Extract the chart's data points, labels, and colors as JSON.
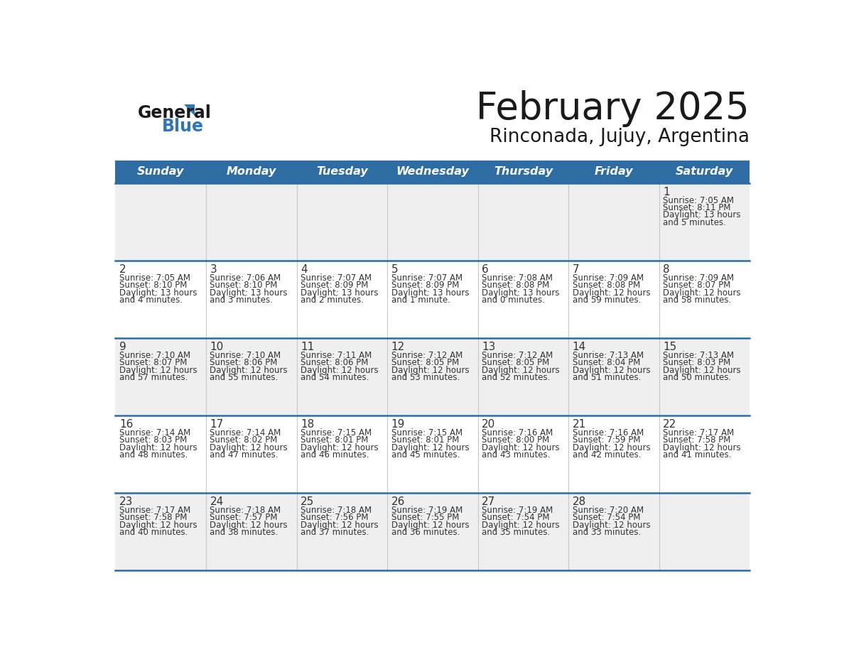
{
  "title": "February 2025",
  "subtitle": "Rinconada, Jujuy, Argentina",
  "header_bg": "#2E6DA4",
  "header_text_color": "#FFFFFF",
  "cell_bg_even": "#EFEFEF",
  "cell_bg_odd": "#FFFFFF",
  "border_color": "#2E6DA4",
  "day_headers": [
    "Sunday",
    "Monday",
    "Tuesday",
    "Wednesday",
    "Thursday",
    "Friday",
    "Saturday"
  ],
  "days": [
    {
      "day": 1,
      "col": 6,
      "row": 0,
      "sunrise": "7:05 AM",
      "sunset": "8:11 PM",
      "daylight_h": "13 hours",
      "daylight_m": "and 5 minutes."
    },
    {
      "day": 2,
      "col": 0,
      "row": 1,
      "sunrise": "7:05 AM",
      "sunset": "8:10 PM",
      "daylight_h": "13 hours",
      "daylight_m": "and 4 minutes."
    },
    {
      "day": 3,
      "col": 1,
      "row": 1,
      "sunrise": "7:06 AM",
      "sunset": "8:10 PM",
      "daylight_h": "13 hours",
      "daylight_m": "and 3 minutes."
    },
    {
      "day": 4,
      "col": 2,
      "row": 1,
      "sunrise": "7:07 AM",
      "sunset": "8:09 PM",
      "daylight_h": "13 hours",
      "daylight_m": "and 2 minutes."
    },
    {
      "day": 5,
      "col": 3,
      "row": 1,
      "sunrise": "7:07 AM",
      "sunset": "8:09 PM",
      "daylight_h": "13 hours",
      "daylight_m": "and 1 minute."
    },
    {
      "day": 6,
      "col": 4,
      "row": 1,
      "sunrise": "7:08 AM",
      "sunset": "8:08 PM",
      "daylight_h": "13 hours",
      "daylight_m": "and 0 minutes."
    },
    {
      "day": 7,
      "col": 5,
      "row": 1,
      "sunrise": "7:09 AM",
      "sunset": "8:08 PM",
      "daylight_h": "12 hours",
      "daylight_m": "and 59 minutes."
    },
    {
      "day": 8,
      "col": 6,
      "row": 1,
      "sunrise": "7:09 AM",
      "sunset": "8:07 PM",
      "daylight_h": "12 hours",
      "daylight_m": "and 58 minutes."
    },
    {
      "day": 9,
      "col": 0,
      "row": 2,
      "sunrise": "7:10 AM",
      "sunset": "8:07 PM",
      "daylight_h": "12 hours",
      "daylight_m": "and 57 minutes."
    },
    {
      "day": 10,
      "col": 1,
      "row": 2,
      "sunrise": "7:10 AM",
      "sunset": "8:06 PM",
      "daylight_h": "12 hours",
      "daylight_m": "and 55 minutes."
    },
    {
      "day": 11,
      "col": 2,
      "row": 2,
      "sunrise": "7:11 AM",
      "sunset": "8:06 PM",
      "daylight_h": "12 hours",
      "daylight_m": "and 54 minutes."
    },
    {
      "day": 12,
      "col": 3,
      "row": 2,
      "sunrise": "7:12 AM",
      "sunset": "8:05 PM",
      "daylight_h": "12 hours",
      "daylight_m": "and 53 minutes."
    },
    {
      "day": 13,
      "col": 4,
      "row": 2,
      "sunrise": "7:12 AM",
      "sunset": "8:05 PM",
      "daylight_h": "12 hours",
      "daylight_m": "and 52 minutes."
    },
    {
      "day": 14,
      "col": 5,
      "row": 2,
      "sunrise": "7:13 AM",
      "sunset": "8:04 PM",
      "daylight_h": "12 hours",
      "daylight_m": "and 51 minutes."
    },
    {
      "day": 15,
      "col": 6,
      "row": 2,
      "sunrise": "7:13 AM",
      "sunset": "8:03 PM",
      "daylight_h": "12 hours",
      "daylight_m": "and 50 minutes."
    },
    {
      "day": 16,
      "col": 0,
      "row": 3,
      "sunrise": "7:14 AM",
      "sunset": "8:03 PM",
      "daylight_h": "12 hours",
      "daylight_m": "and 48 minutes."
    },
    {
      "day": 17,
      "col": 1,
      "row": 3,
      "sunrise": "7:14 AM",
      "sunset": "8:02 PM",
      "daylight_h": "12 hours",
      "daylight_m": "and 47 minutes."
    },
    {
      "day": 18,
      "col": 2,
      "row": 3,
      "sunrise": "7:15 AM",
      "sunset": "8:01 PM",
      "daylight_h": "12 hours",
      "daylight_m": "and 46 minutes."
    },
    {
      "day": 19,
      "col": 3,
      "row": 3,
      "sunrise": "7:15 AM",
      "sunset": "8:01 PM",
      "daylight_h": "12 hours",
      "daylight_m": "and 45 minutes."
    },
    {
      "day": 20,
      "col": 4,
      "row": 3,
      "sunrise": "7:16 AM",
      "sunset": "8:00 PM",
      "daylight_h": "12 hours",
      "daylight_m": "and 43 minutes."
    },
    {
      "day": 21,
      "col": 5,
      "row": 3,
      "sunrise": "7:16 AM",
      "sunset": "7:59 PM",
      "daylight_h": "12 hours",
      "daylight_m": "and 42 minutes."
    },
    {
      "day": 22,
      "col": 6,
      "row": 3,
      "sunrise": "7:17 AM",
      "sunset": "7:58 PM",
      "daylight_h": "12 hours",
      "daylight_m": "and 41 minutes."
    },
    {
      "day": 23,
      "col": 0,
      "row": 4,
      "sunrise": "7:17 AM",
      "sunset": "7:58 PM",
      "daylight_h": "12 hours",
      "daylight_m": "and 40 minutes."
    },
    {
      "day": 24,
      "col": 1,
      "row": 4,
      "sunrise": "7:18 AM",
      "sunset": "7:57 PM",
      "daylight_h": "12 hours",
      "daylight_m": "and 38 minutes."
    },
    {
      "day": 25,
      "col": 2,
      "row": 4,
      "sunrise": "7:18 AM",
      "sunset": "7:56 PM",
      "daylight_h": "12 hours",
      "daylight_m": "and 37 minutes."
    },
    {
      "day": 26,
      "col": 3,
      "row": 4,
      "sunrise": "7:19 AM",
      "sunset": "7:55 PM",
      "daylight_h": "12 hours",
      "daylight_m": "and 36 minutes."
    },
    {
      "day": 27,
      "col": 4,
      "row": 4,
      "sunrise": "7:19 AM",
      "sunset": "7:54 PM",
      "daylight_h": "12 hours",
      "daylight_m": "and 35 minutes."
    },
    {
      "day": 28,
      "col": 5,
      "row": 4,
      "sunrise": "7:20 AM",
      "sunset": "7:54 PM",
      "daylight_h": "12 hours",
      "daylight_m": "and 33 minutes."
    }
  ],
  "num_rows": 5,
  "num_cols": 7,
  "title_fontsize": 38,
  "subtitle_fontsize": 19,
  "header_fontsize": 11.5,
  "day_number_fontsize": 11,
  "cell_text_fontsize": 8.5
}
